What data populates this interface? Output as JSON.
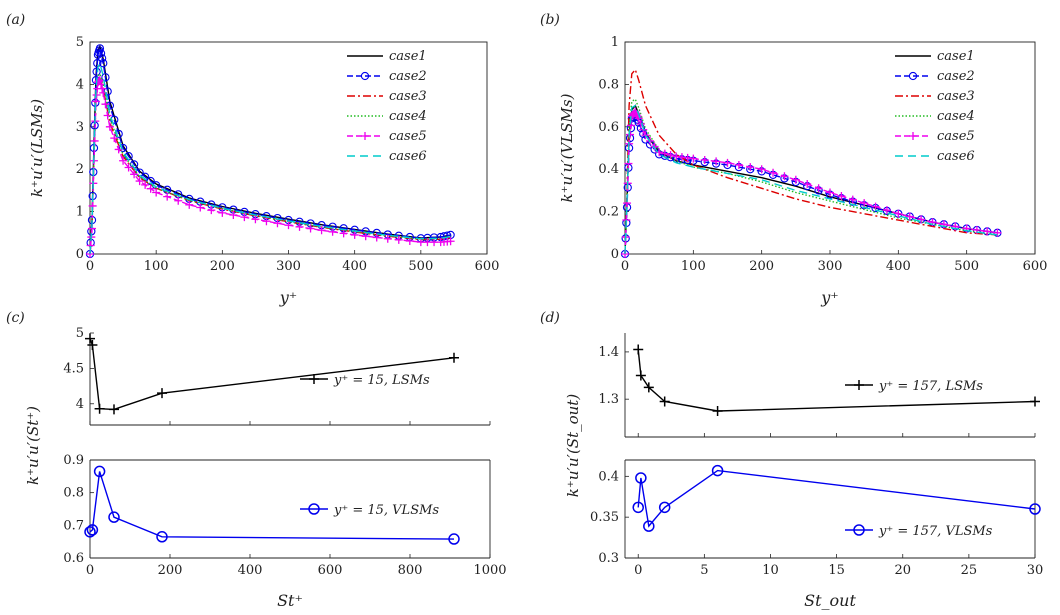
{
  "chart_data": [
    {
      "type": "line",
      "panel_label": "(a)",
      "xlabel": "y⁺",
      "ylabel": "k⁺u′u′(LSMs)",
      "xlim": [
        0,
        600
      ],
      "ylim": [
        0,
        5
      ],
      "xticks": [
        0,
        100,
        200,
        300,
        400,
        500,
        600
      ],
      "yticks": [
        0,
        1,
        2,
        3,
        4,
        5
      ],
      "legend": "top-right",
      "series": [
        {
          "name": "case1",
          "color": "#000000",
          "dash": "solid",
          "marker": "none",
          "x": [
            0,
            3,
            6,
            9,
            12,
            15,
            20,
            30,
            50,
            75,
            100,
            150,
            200,
            250,
            300,
            350,
            400,
            450,
            500,
            530,
            545
          ],
          "y": [
            0,
            0.8,
            2.6,
            4.2,
            4.8,
            4.9,
            4.6,
            3.6,
            2.55,
            1.95,
            1.65,
            1.32,
            1.12,
            0.96,
            0.82,
            0.69,
            0.58,
            0.47,
            0.38,
            0.4,
            0.45
          ]
        },
        {
          "name": "case2",
          "color": "#0000ee",
          "dash": "6,3",
          "marker": "circle",
          "x": [
            0,
            3,
            6,
            9,
            12,
            15,
            20,
            30,
            50,
            75,
            100,
            150,
            200,
            250,
            300,
            350,
            400,
            450,
            500,
            530,
            545
          ],
          "y": [
            0,
            0.8,
            2.5,
            4.1,
            4.7,
            4.85,
            4.5,
            3.5,
            2.5,
            1.92,
            1.62,
            1.3,
            1.1,
            0.94,
            0.8,
            0.68,
            0.57,
            0.46,
            0.37,
            0.4,
            0.45
          ]
        },
        {
          "name": "case3",
          "color": "#dd0000",
          "dash": "8,3,2,3",
          "marker": "none",
          "x": [
            0,
            3,
            6,
            9,
            12,
            15,
            20,
            30,
            50,
            75,
            100,
            150,
            200,
            250,
            300,
            350,
            400,
            450,
            500,
            530,
            545
          ],
          "y": [
            0,
            0.7,
            2.2,
            3.6,
            4.1,
            4.15,
            3.9,
            3.1,
            2.3,
            1.8,
            1.55,
            1.26,
            1.06,
            0.9,
            0.76,
            0.63,
            0.52,
            0.42,
            0.34,
            0.35,
            0.38
          ]
        },
        {
          "name": "case4",
          "color": "#22bb22",
          "dash": "1.5,2",
          "marker": "none",
          "x": [
            0,
            3,
            6,
            9,
            12,
            15,
            20,
            30,
            50,
            75,
            100,
            150,
            200,
            250,
            300,
            350,
            400,
            450,
            500,
            530,
            545
          ],
          "y": [
            0,
            0.7,
            2.3,
            3.7,
            4.2,
            4.25,
            4.0,
            3.2,
            2.35,
            1.82,
            1.56,
            1.27,
            1.07,
            0.91,
            0.77,
            0.64,
            0.53,
            0.43,
            0.35,
            0.36,
            0.4
          ]
        },
        {
          "name": "case5",
          "color": "#ee00ee",
          "dash": "6,3",
          "marker": "plus",
          "x": [
            0,
            3,
            6,
            9,
            12,
            15,
            20,
            30,
            50,
            75,
            100,
            150,
            200,
            250,
            300,
            350,
            400,
            450,
            500,
            530,
            545
          ],
          "y": [
            0,
            0.6,
            2.2,
            3.6,
            4.05,
            4.1,
            3.8,
            3.0,
            2.2,
            1.72,
            1.45,
            1.16,
            0.97,
            0.82,
            0.68,
            0.56,
            0.45,
            0.36,
            0.28,
            0.28,
            0.3
          ]
        },
        {
          "name": "case6",
          "color": "#00cccc",
          "dash": "8,5",
          "marker": "none",
          "x": [
            0,
            3,
            6,
            9,
            12,
            15,
            20,
            30,
            50,
            75,
            100,
            150,
            200,
            250,
            300,
            350,
            400,
            450,
            500,
            530,
            545
          ],
          "y": [
            0,
            0.7,
            2.4,
            3.9,
            4.4,
            4.5,
            4.2,
            3.3,
            2.4,
            1.86,
            1.58,
            1.28,
            1.08,
            0.92,
            0.78,
            0.65,
            0.54,
            0.44,
            0.36,
            0.37,
            0.41
          ]
        }
      ]
    },
    {
      "type": "line",
      "panel_label": "(b)",
      "xlabel": "y⁺",
      "ylabel": "k⁺u′u′(VLSMs)",
      "xlim": [
        0,
        600
      ],
      "ylim": [
        0,
        1
      ],
      "xticks": [
        0,
        100,
        200,
        300,
        400,
        500,
        600
      ],
      "yticks": [
        0,
        0.2,
        0.4,
        0.6,
        0.8,
        1
      ],
      "legend": "top-right",
      "series": [
        {
          "name": "case1",
          "color": "#000000",
          "dash": "solid",
          "marker": "none",
          "x": [
            0,
            3,
            6,
            10,
            15,
            20,
            30,
            50,
            75,
            100,
            150,
            200,
            250,
            300,
            350,
            400,
            450,
            500,
            545
          ],
          "y": [
            0,
            0.25,
            0.55,
            0.68,
            0.7,
            0.66,
            0.57,
            0.48,
            0.44,
            0.42,
            0.39,
            0.36,
            0.32,
            0.27,
            0.23,
            0.19,
            0.15,
            0.12,
            0.1
          ]
        },
        {
          "name": "case2",
          "color": "#0000ee",
          "dash": "6,3",
          "marker": "circle",
          "x": [
            0,
            3,
            6,
            10,
            15,
            20,
            30,
            50,
            75,
            100,
            150,
            200,
            250,
            300,
            350,
            400,
            450,
            500,
            545
          ],
          "y": [
            0,
            0.22,
            0.5,
            0.64,
            0.66,
            0.62,
            0.54,
            0.47,
            0.45,
            0.44,
            0.42,
            0.39,
            0.34,
            0.28,
            0.23,
            0.19,
            0.15,
            0.12,
            0.1
          ]
        },
        {
          "name": "case3",
          "color": "#dd0000",
          "dash": "8,3,2,3",
          "marker": "none",
          "x": [
            0,
            3,
            6,
            10,
            15,
            20,
            30,
            50,
            75,
            100,
            150,
            200,
            250,
            300,
            350,
            400,
            450,
            500,
            545
          ],
          "y": [
            0,
            0.3,
            0.7,
            0.85,
            0.87,
            0.82,
            0.7,
            0.56,
            0.47,
            0.42,
            0.36,
            0.31,
            0.26,
            0.22,
            0.19,
            0.16,
            0.13,
            0.1,
            0.09
          ]
        },
        {
          "name": "case4",
          "color": "#22bb22",
          "dash": "1.5,2",
          "marker": "none",
          "x": [
            0,
            3,
            6,
            10,
            15,
            20,
            30,
            50,
            75,
            100,
            150,
            200,
            250,
            300,
            350,
            400,
            450,
            500,
            545
          ],
          "y": [
            0,
            0.26,
            0.6,
            0.72,
            0.73,
            0.69,
            0.59,
            0.49,
            0.44,
            0.41,
            0.38,
            0.34,
            0.29,
            0.25,
            0.21,
            0.17,
            0.14,
            0.11,
            0.09
          ]
        },
        {
          "name": "case5",
          "color": "#ee00ee",
          "dash": "6,3",
          "marker": "plus",
          "x": [
            0,
            3,
            6,
            10,
            15,
            20,
            30,
            50,
            75,
            100,
            150,
            200,
            250,
            300,
            350,
            400,
            450,
            500,
            545
          ],
          "y": [
            0,
            0.24,
            0.52,
            0.65,
            0.67,
            0.64,
            0.56,
            0.48,
            0.46,
            0.45,
            0.43,
            0.4,
            0.35,
            0.29,
            0.24,
            0.19,
            0.15,
            0.12,
            0.1
          ]
        },
        {
          "name": "case6",
          "color": "#00cccc",
          "dash": "8,5",
          "marker": "none",
          "x": [
            0,
            3,
            6,
            10,
            15,
            20,
            30,
            50,
            75,
            100,
            150,
            200,
            250,
            300,
            350,
            400,
            450,
            500,
            545
          ],
          "y": [
            0,
            0.25,
            0.56,
            0.69,
            0.7,
            0.66,
            0.56,
            0.47,
            0.43,
            0.41,
            0.38,
            0.35,
            0.3,
            0.26,
            0.22,
            0.18,
            0.14,
            0.11,
            0.09
          ]
        }
      ]
    },
    {
      "type": "line",
      "panel_label": "(c)",
      "xlabel": "St⁺",
      "ylabel": "k⁺u′u′(St⁺)",
      "xlim": [
        0,
        1000
      ],
      "xticks": [
        0,
        200,
        400,
        600,
        800,
        1000
      ],
      "subplots": [
        {
          "ylim": [
            3.7,
            5.0
          ],
          "yticks": [
            4,
            4.5,
            5
          ],
          "ytick_labels": [
            "4",
            "4.5",
            "5"
          ],
          "legend": "center-right",
          "series": [
            {
              "name": "y⁺ = 15, LSMs",
              "color": "#000000",
              "marker": "plus",
              "x": [
                0,
                6,
                24,
                60,
                180,
                910
              ],
              "y": [
                4.92,
                4.83,
                3.93,
                3.92,
                4.15,
                4.65
              ]
            }
          ]
        },
        {
          "ylim": [
            0.6,
            0.9
          ],
          "yticks": [
            0.6,
            0.7,
            0.8,
            0.9
          ],
          "ytick_labels": [
            "0.6",
            "0.7",
            "0.8",
            "0.9"
          ],
          "legend": "center-right",
          "series": [
            {
              "name": "y⁺ = 15, VLSMs",
              "color": "#0000ee",
              "marker": "circle",
              "x": [
                0,
                6,
                24,
                60,
                180,
                910
              ],
              "y": [
                0.68,
                0.686,
                0.865,
                0.725,
                0.665,
                0.658
              ]
            }
          ]
        }
      ]
    },
    {
      "type": "line",
      "panel_label": "(d)",
      "xlabel": "St_out",
      "ylabel": "k⁺u′u′(St_out)",
      "xlim": [
        -1,
        30
      ],
      "xticks": [
        0,
        5,
        10,
        15,
        20,
        25,
        30
      ],
      "subplots": [
        {
          "ylim": [
            1.22,
            1.44
          ],
          "yticks": [
            1.3,
            1.4
          ],
          "ytick_labels": [
            "1.3",
            "1.4"
          ],
          "legend": "center-right",
          "series": [
            {
              "name": "y⁺ = 157, LSMs",
              "color": "#000000",
              "marker": "plus",
              "x": [
                0,
                0.2,
                0.8,
                2,
                6,
                30
              ],
              "y": [
                1.405,
                1.35,
                1.325,
                1.295,
                1.275,
                1.295
              ]
            }
          ]
        },
        {
          "ylim": [
            0.3,
            0.42
          ],
          "yticks": [
            0.3,
            0.35,
            0.4
          ],
          "ytick_labels": [
            "0.3",
            "0.35",
            "0.4"
          ],
          "legend": "bottom-right",
          "series": [
            {
              "name": "y⁺ = 157, VLSMs",
              "color": "#0000ee",
              "marker": "circle",
              "x": [
                0,
                0.2,
                0.8,
                2,
                6,
                30
              ],
              "y": [
                0.362,
                0.398,
                0.339,
                0.362,
                0.407,
                0.36
              ]
            }
          ]
        }
      ]
    }
  ]
}
